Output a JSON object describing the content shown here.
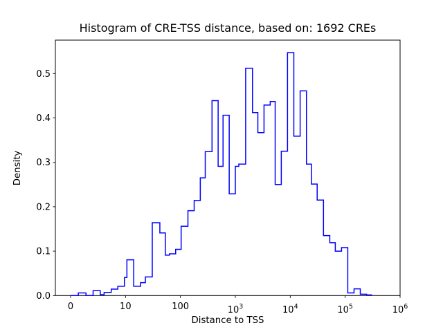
{
  "figure": {
    "title": "Histogram of CRE-TSS distance, based on: 1692 CREs",
    "xlabel": "Distance to TSS",
    "ylabel": "Density"
  },
  "chart_data": {
    "type": "histogram-step",
    "title": "Histogram of CRE-TSS distance, based on: 1692 CREs",
    "xlabel": "Distance to TSS",
    "ylabel": "Density",
    "n_samples": 1692,
    "line_color": "#0000ff",
    "background": "#ffffff",
    "x_scale": "symlog",
    "x_linthresh": 10,
    "xlim_ticks": [
      0,
      1000000
    ],
    "ylim": [
      0,
      0.575
    ],
    "grid": false,
    "x_ticks": [
      {
        "text": "0",
        "value": 0
      },
      {
        "text": "10",
        "value": 10
      },
      {
        "text": "100",
        "value": 100
      },
      {
        "base": "10",
        "sup": "3",
        "value": 1000
      },
      {
        "base": "10",
        "sup": "4",
        "value": 10000
      },
      {
        "base": "10",
        "sup": "5",
        "value": 100000
      },
      {
        "base": "10",
        "sup": "6",
        "value": 1000000
      }
    ],
    "y_ticks": [
      {
        "text": "0.0",
        "value": 0.0
      },
      {
        "text": "0.1",
        "value": 0.1
      },
      {
        "text": "0.2",
        "value": 0.2
      },
      {
        "text": "0.3",
        "value": 0.3
      },
      {
        "text": "0.4",
        "value": 0.4
      },
      {
        "text": "0.5",
        "value": 0.5
      }
    ],
    "steps_note": "each entry = [distance at left edge of level, density]; level holds until next entry's x; last entry returns to 0",
    "steps": [
      [
        0,
        0
      ],
      [
        1.4,
        0.006
      ],
      [
        2.8,
        0
      ],
      [
        4.1,
        0.011
      ],
      [
        5.4,
        0.002
      ],
      [
        6.1,
        0.007
      ],
      [
        7.4,
        0.0145
      ],
      [
        8.6,
        0.021
      ],
      [
        9.8,
        0.0405
      ],
      [
        10.6,
        0.0805
      ],
      [
        14.1,
        0.021
      ],
      [
        18.8,
        0.029
      ],
      [
        23.0,
        0.042
      ],
      [
        30.7,
        0.164
      ],
      [
        42.2,
        0.141
      ],
      [
        53.1,
        0.091
      ],
      [
        63.1,
        0.094
      ],
      [
        81.8,
        0.104
      ],
      [
        103,
        0.156
      ],
      [
        137,
        0.191
      ],
      [
        178,
        0.214
      ],
      [
        230,
        0.265
      ],
      [
        283,
        0.324
      ],
      [
        376,
        0.439
      ],
      [
        486,
        0.291
      ],
      [
        597,
        0.406
      ],
      [
        773,
        0.229
      ],
      [
        1000,
        0.291
      ],
      [
        1156,
        0.296
      ],
      [
        1542,
        0.512
      ],
      [
        2054,
        0.412
      ],
      [
        2570,
        0.367
      ],
      [
        3327,
        0.429
      ],
      [
        4315,
        0.437
      ],
      [
        5309,
        0.25
      ],
      [
        6866,
        0.325
      ],
      [
        8912,
        0.547
      ],
      [
        11615,
        0.359
      ],
      [
        15136,
        0.461
      ],
      [
        19724,
        0.296
      ],
      [
        24266,
        0.251
      ],
      [
        30903,
        0.215
      ],
      [
        40272,
        0.135
      ],
      [
        52480,
        0.119
      ],
      [
        66069,
        0.1
      ],
      [
        85770,
        0.108
      ],
      [
        111534,
        0.006
      ],
      [
        145011,
        0.015
      ],
      [
        188538,
        0.003
      ],
      [
        245131,
        0.0015
      ],
      [
        303143,
        0
      ]
    ]
  }
}
